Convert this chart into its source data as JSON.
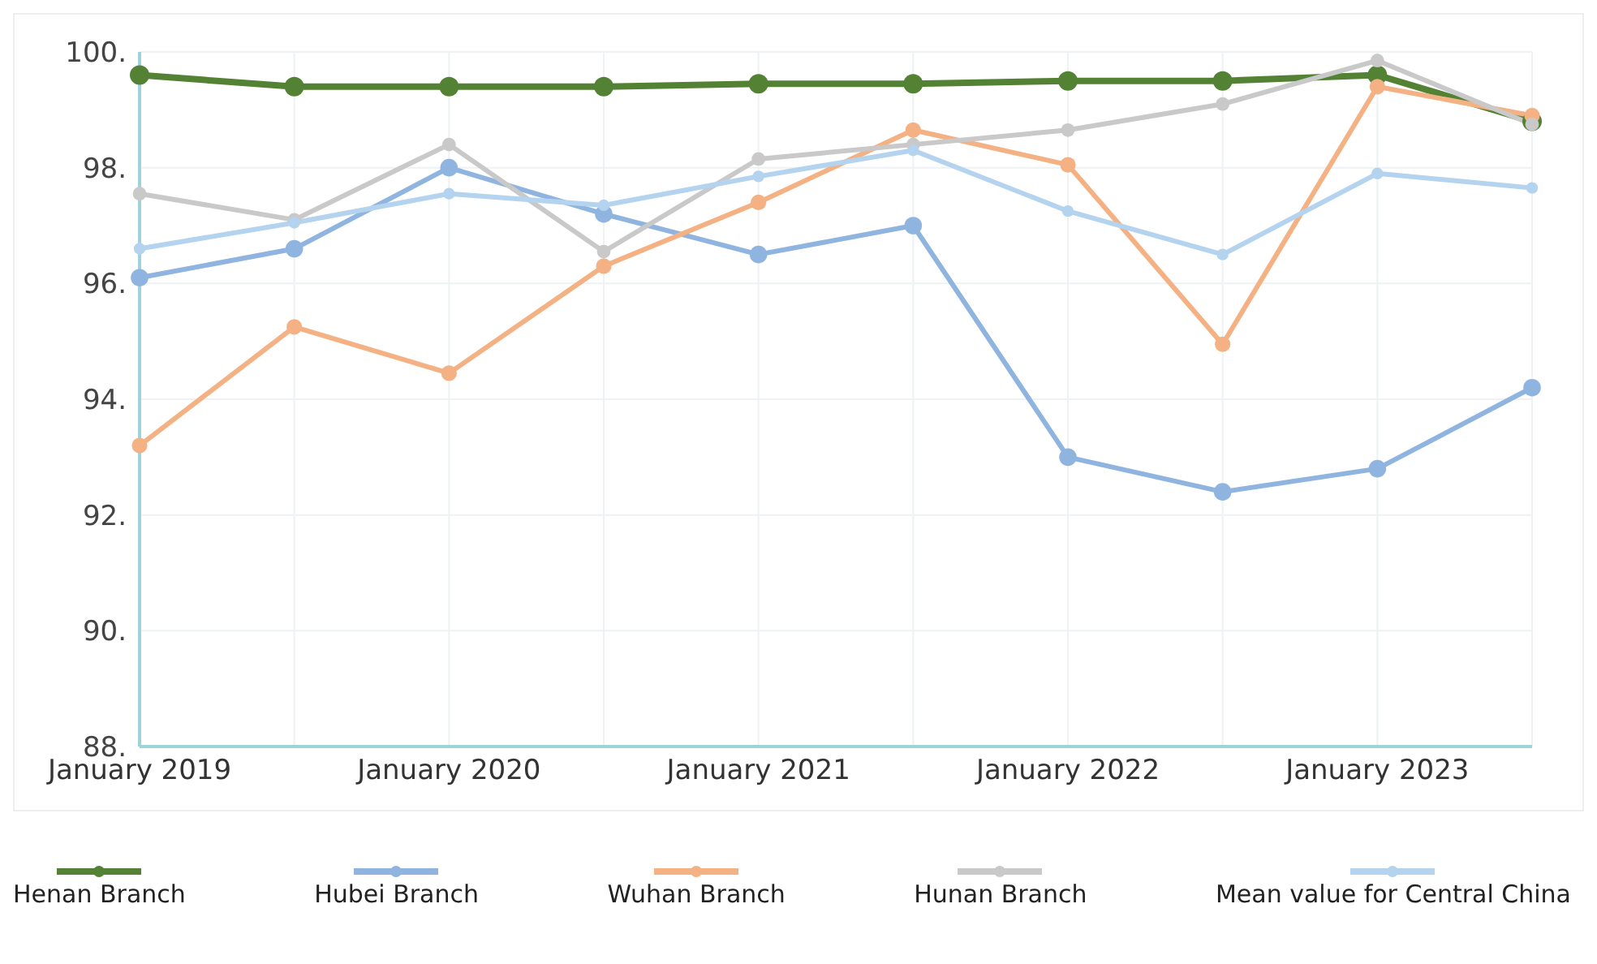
{
  "chart_data": {
    "type": "line",
    "categories": [
      "January 2019",
      null,
      "January 2020",
      null,
      "January 2021",
      null,
      "January 2022",
      null,
      "January 2023",
      null
    ],
    "series": [
      {
        "name": "Henan Branch",
        "color": "#548235",
        "values": [
          99.6,
          99.4,
          99.4,
          99.4,
          99.45,
          99.45,
          99.5,
          99.5,
          99.6,
          98.8
        ]
      },
      {
        "name": "Hubei Branch",
        "color": "#8fb4e0",
        "values": [
          96.1,
          96.6,
          98.0,
          97.2,
          96.5,
          97.0,
          93.0,
          92.4,
          92.8,
          94.2
        ]
      },
      {
        "name": "Wuhan Branch",
        "color": "#f4b183",
        "values": [
          93.2,
          95.25,
          94.45,
          96.3,
          97.4,
          98.65,
          98.05,
          94.95,
          99.4,
          98.9
        ]
      },
      {
        "name": "Hunan Branch",
        "color": "#c9c9c9",
        "values": [
          97.55,
          97.1,
          98.4,
          96.55,
          98.15,
          98.4,
          98.65,
          99.1,
          99.85,
          98.75
        ]
      },
      {
        "name": "Mean value for Central China",
        "color": "#b4d3ee",
        "values": [
          96.6,
          97.05,
          97.55,
          97.35,
          97.85,
          98.3,
          97.25,
          96.5,
          97.9,
          97.65
        ]
      }
    ],
    "ylim": [
      88,
      100
    ],
    "yticks": [
      {
        "value": 88,
        "label": "88."
      },
      {
        "value": 90,
        "label": "90."
      },
      {
        "value": 92,
        "label": "92."
      },
      {
        "value": 94,
        "label": "94."
      },
      {
        "value": 96,
        "label": "96."
      },
      {
        "value": 98,
        "label": "98."
      },
      {
        "value": 100,
        "label": "100."
      }
    ],
    "grid": true,
    "legend": "bottom",
    "marker": "circle",
    "line_style": "solid"
  }
}
